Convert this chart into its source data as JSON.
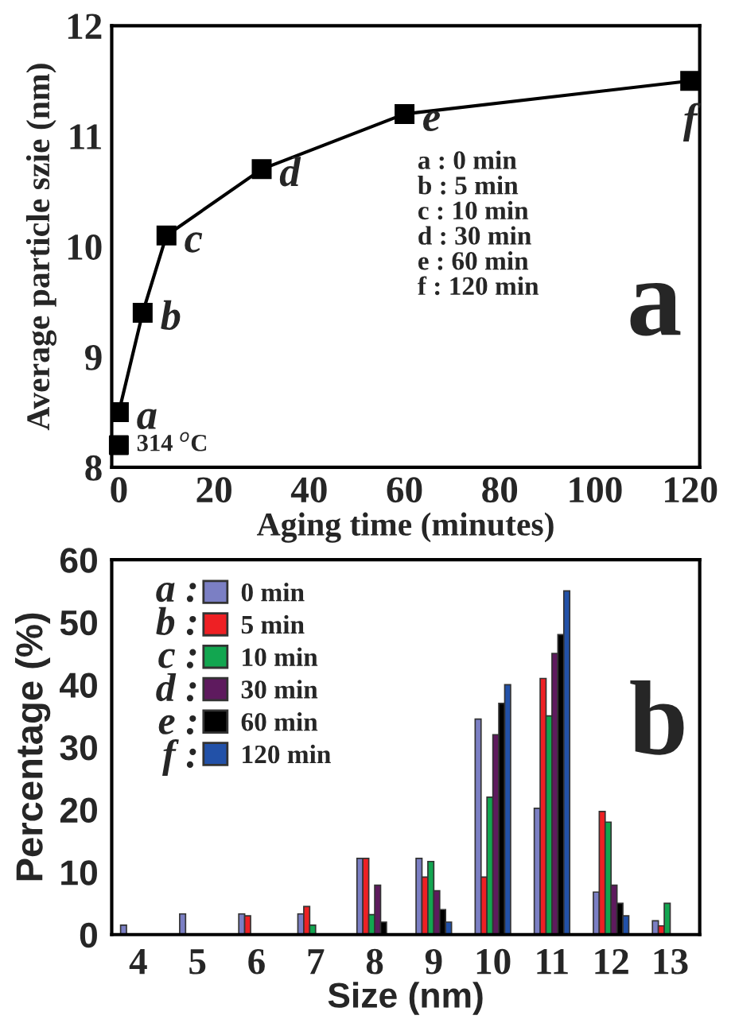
{
  "chart_data": [
    {
      "type": "line",
      "xlabel": "Aging time (minutes)",
      "ylabel": "Average particle szie (nm)",
      "xlim": [
        -1.5,
        122
      ],
      "ylim": [
        8,
        12
      ],
      "xticks": [
        0,
        20,
        40,
        60,
        80,
        100,
        120
      ],
      "yticks": [
        8,
        9,
        10,
        11,
        12
      ],
      "grid": false,
      "legend": false,
      "marker": "square",
      "line_style": "solid",
      "series": [
        {
          "color": "#000000",
          "x": [
            0,
            5,
            10,
            30,
            60,
            120
          ],
          "values": [
            8.5,
            9.4,
            10.1,
            10.7,
            11.2,
            11.5
          ]
        },
        {
          "type": "scatter",
          "color": "#000000",
          "x": [
            0
          ],
          "values": [
            8.2
          ]
        }
      ],
      "annotations": [
        {
          "text": "a",
          "x": 0,
          "y": 8.5
        },
        {
          "text": "b",
          "x": 5,
          "y": 9.4
        },
        {
          "text": "c",
          "x": 10,
          "y": 10.1
        },
        {
          "text": "d",
          "x": 30,
          "y": 10.7
        },
        {
          "text": "e",
          "x": 60,
          "y": 11.2
        },
        {
          "text": "f",
          "x": 120,
          "y": 11.5
        },
        {
          "text": "314 $^{o}$C",
          "x": 0,
          "y": 8.2
        },
        "a : 0 min",
        "b : 5 min",
        "c : 10 min",
        "d : 30 min",
        "e : 60 min",
        "f : 120 min",
        "a"
      ]
    },
    {
      "type": "bar",
      "xlabel": "Size (nm)",
      "ylabel": "Percentage (%)",
      "categories": [
        "4",
        "5",
        "6",
        "7",
        "8",
        "9",
        "10",
        "11",
        "12",
        "13"
      ],
      "ylim": [
        0,
        60
      ],
      "yticks": [
        0,
        10,
        20,
        30,
        40,
        50,
        60
      ],
      "grid": false,
      "legend": "top left",
      "series": [
        {
          "name": "0 min",
          "color": "#7b7fc4",
          "values": [
            1.5,
            3.3,
            3.3,
            3.3,
            12.2,
            12.2,
            34.5,
            20.2,
            6.8,
            2.2
          ]
        },
        {
          "name": "5 min",
          "color": "#ee2024",
          "values": [
            null,
            null,
            3.0,
            4.5,
            12.2,
            9.2,
            9.2,
            41,
            19.7,
            1.4
          ]
        },
        {
          "name": "10 min",
          "color": "#12a650",
          "values": [
            null,
            null,
            null,
            1.5,
            3.2,
            11.7,
            22,
            35,
            18,
            5
          ]
        },
        {
          "name": "30 min",
          "color": "#5e1a5e",
          "values": [
            null,
            null,
            null,
            null,
            7.9,
            7,
            32,
            45,
            7.9,
            null
          ]
        },
        {
          "name": "60 min",
          "color": "#000000",
          "values": [
            null,
            null,
            null,
            null,
            2,
            4,
            37,
            48,
            5,
            null
          ]
        },
        {
          "name": "120 min",
          "color": "#2251a8",
          "values": [
            null,
            null,
            null,
            null,
            null,
            2,
            40,
            55,
            3,
            null
          ]
        }
      ],
      "annotations": [
        "a :",
        "b :",
        "c :",
        "d :",
        "e :",
        "f :",
        "b"
      ]
    }
  ]
}
